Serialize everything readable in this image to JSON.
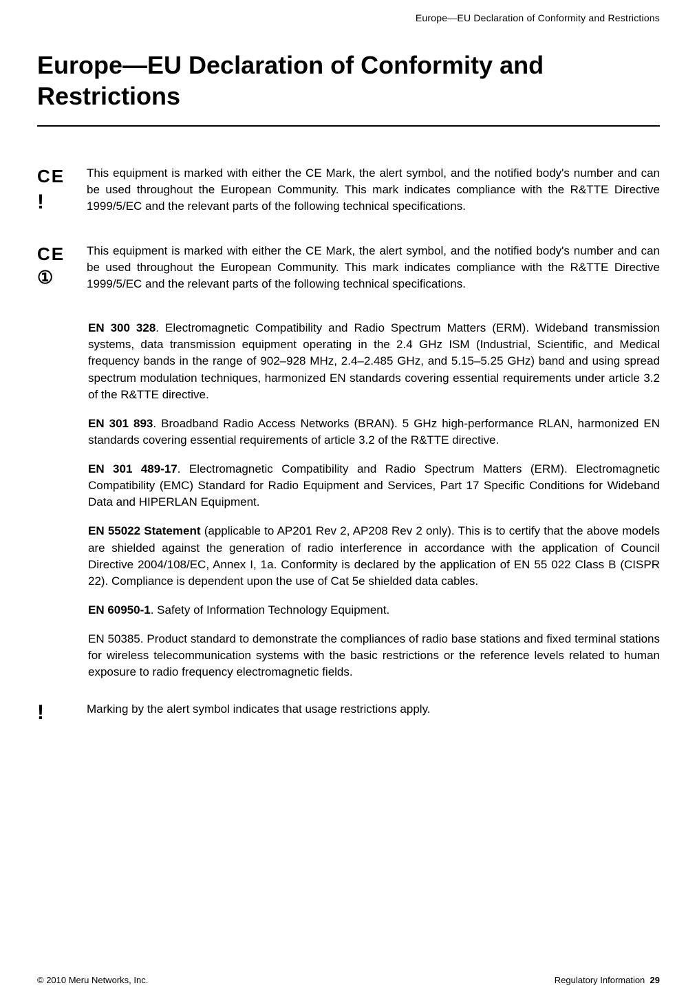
{
  "running_header": "Europe—EU Declaration of Conformity and Restrictions",
  "title": "Europe—EU Declaration of Conformity and Restrictions",
  "notices": [
    {
      "ce": "CE",
      "sym": "!",
      "text": "This equipment is marked with either the CE Mark, the alert symbol, and the notified body's number and can be used throughout the European Community. This mark indicates compliance with the R&TTE Directive 1999/5/EC and the relevant parts of the following technical specifications."
    },
    {
      "ce": "CE",
      "sym": "①",
      "text": "This equipment is marked with either the CE Mark, the alert symbol, and the notified body's number and can be used throughout the European Community. This mark indicates compliance with the R&TTE Directive 1999/5/EC and the relevant parts of the following technical specifications."
    }
  ],
  "standards": [
    {
      "name": "EN 300 328",
      "desc": ". Electromagnetic Compatibility and Radio Spectrum Matters (ERM). Wideband transmission systems, data transmission equipment operating in the 2.4 GHz ISM (Industrial, Scientific, and Medical frequency bands in the range of 902–928 MHz, 2.4–2.485 GHz, and 5.15–5.25 GHz) band and using spread spectrum modulation techniques, harmonized EN standards covering essential requirements under article 3.2 of the R&TTE directive."
    },
    {
      "name": "EN 301 893",
      "desc": ". Broadband Radio Access Networks (BRAN). 5 GHz high-performance RLAN, harmonized EN standards covering essential requirements of article 3.2 of the R&TTE directive."
    },
    {
      "name": "EN 301 489-17",
      "desc": ". Electromagnetic Compatibility and Radio Spectrum Matters (ERM). Electromagnetic Compatibility (EMC) Standard for Radio Equipment and Services, Part 17 Specific Conditions for Wideband Data and HIPERLAN Equipment."
    },
    {
      "name": "EN 55022 Statement",
      "desc": " (applicable to AP201 Rev 2, AP208 Rev 2 only). This is to certify that the above models are shielded against the generation of radio interference in accordance with the application of Council Directive 2004/108/EC, Annex I, 1a. Conformity is declared by the application of EN 55 022 Class B (CISPR 22). Compliance is dependent upon the use of Cat 5e shielded data cables."
    },
    {
      "name": "EN 60950-1",
      "desc": ". Safety of Information Technology Equipment."
    },
    {
      "name": "",
      "desc": "EN 50385. Product standard to demonstrate the compliances of radio base stations and fixed terminal stations for wireless telecommunication systems with the basic restrictions or the reference levels related to human exposure to radio frequency electromagnetic fields."
    }
  ],
  "marking": {
    "sym": "!",
    "text": "Marking by the alert symbol indicates that usage restrictions apply."
  },
  "footer": {
    "left": "© 2010 Meru Networks, Inc.",
    "right_label": "Regulatory Information",
    "right_page": "29"
  }
}
